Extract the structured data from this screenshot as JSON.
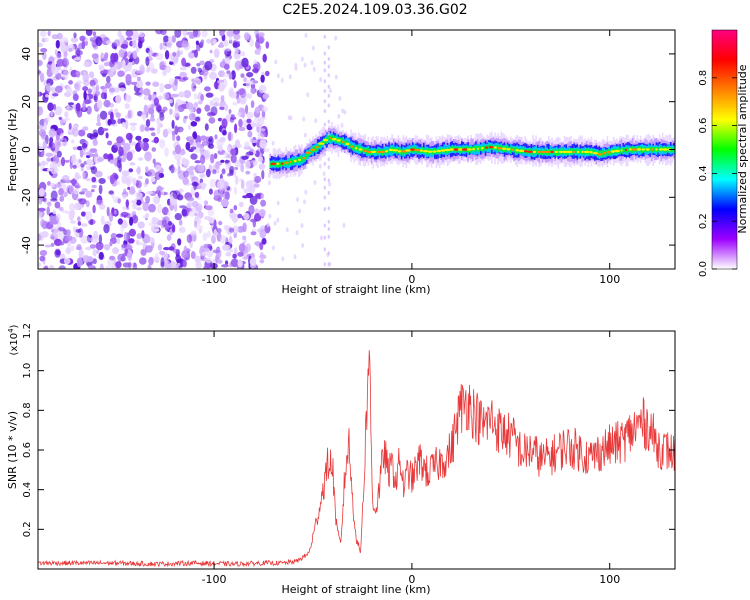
{
  "title": "C2E5.2024.109.03.36.G02",
  "chart_data": [
    {
      "type": "heatmap",
      "xlabel": "Height of straight line (km)",
      "ylabel": "Frequency (Hz)",
      "xlim": [
        -189,
        133
      ],
      "ylim": [
        -50,
        50
      ],
      "x_ticks": [
        "-100",
        "0",
        "100"
      ],
      "x_tick_values": [
        -100,
        0,
        100
      ],
      "y_ticks": [
        "40",
        "20",
        "0",
        "-20",
        "-40"
      ],
      "y_tick_values": [
        40,
        20,
        0,
        -20,
        -40
      ],
      "noise_region_x": [
        -189,
        -73
      ],
      "ridge": {
        "x": [
          -72,
          -66,
          -60,
          -55,
          -52,
          -48,
          -45,
          -42,
          -38,
          -34,
          -30,
          -26,
          -22,
          -18,
          -14,
          -10,
          -5,
          0,
          10,
          20,
          30,
          40,
          50,
          60,
          70,
          80,
          90,
          95,
          100,
          110,
          120,
          133
        ],
        "y": [
          -6,
          -6,
          -5,
          -4,
          -1,
          1,
          3,
          5,
          4,
          3,
          1,
          0,
          -1,
          -1,
          -1,
          0,
          -1,
          0,
          -1,
          0,
          0,
          1,
          0,
          -1,
          -1,
          -1,
          -1,
          -2,
          -1,
          0,
          0,
          0
        ]
      },
      "colorbar": {
        "label": "Normalized spectral amplitude",
        "range": [
          0,
          1
        ],
        "ticks": [
          "0.0",
          "0.2",
          "0.4",
          "0.6",
          "0.8"
        ],
        "tick_values": [
          0,
          0.2,
          0.4,
          0.6,
          0.8
        ],
        "colors": [
          "#ffffff",
          "#9d00ff",
          "#0000ff",
          "#00ffff",
          "#00ff00",
          "#ffff00",
          "#ff7f00",
          "#ff0000",
          "#ff0080"
        ]
      }
    },
    {
      "type": "line",
      "xlabel": "Height of straight line (km)",
      "ylabel": "SNR (10 * v/v)",
      "y_scale_label": "(x10",
      "y_scale_exp": "4",
      "y_scale_close": ")",
      "xlim": [
        -189,
        133
      ],
      "ylim": [
        0,
        1.2
      ],
      "x_ticks": [
        "-100",
        "0",
        "100"
      ],
      "x_tick_values": [
        -100,
        0,
        100
      ],
      "y_ticks": [
        "0.2",
        "0.4",
        "0.6",
        "0.8",
        "1.0",
        "1.2"
      ],
      "y_tick_values": [
        0.2,
        0.4,
        0.6,
        0.8,
        1.0,
        1.2
      ],
      "series": [
        {
          "color": "#e8393a",
          "x": [
            -189,
            -170,
            -150,
            -130,
            -110,
            -90,
            -75,
            -65,
            -58,
            -52,
            -48,
            -45,
            -42,
            -40,
            -38,
            -36,
            -34,
            -32,
            -30,
            -28,
            -26,
            -24,
            -22,
            -21,
            -20,
            -18,
            -16,
            -14,
            -12,
            -10,
            -8,
            -6,
            -4,
            -2,
            0,
            4,
            8,
            12,
            16,
            20,
            24,
            28,
            32,
            36,
            40,
            44,
            48,
            52,
            56,
            60,
            66,
            72,
            78,
            84,
            90,
            96,
            100,
            106,
            112,
            116,
            120,
            124,
            128,
            133
          ],
          "y": [
            0.03,
            0.03,
            0.03,
            0.025,
            0.03,
            0.025,
            0.03,
            0.03,
            0.04,
            0.08,
            0.25,
            0.4,
            0.55,
            0.5,
            0.2,
            0.12,
            0.45,
            0.65,
            0.35,
            0.15,
            0.08,
            0.5,
            1.05,
            0.9,
            0.35,
            0.3,
            0.45,
            0.6,
            0.48,
            0.52,
            0.45,
            0.55,
            0.4,
            0.5,
            0.45,
            0.55,
            0.48,
            0.52,
            0.55,
            0.6,
            0.8,
            0.85,
            0.78,
            0.72,
            0.76,
            0.7,
            0.68,
            0.65,
            0.58,
            0.6,
            0.55,
            0.58,
            0.62,
            0.6,
            0.56,
            0.6,
            0.62,
            0.64,
            0.7,
            0.74,
            0.72,
            0.62,
            0.6,
            0.58
          ]
        }
      ]
    }
  ]
}
